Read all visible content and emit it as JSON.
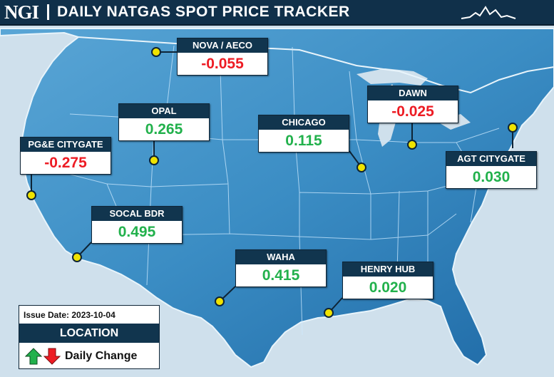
{
  "header": {
    "logo": "NGI",
    "title": "DAILY NATGAS SPOT PRICE TRACKER"
  },
  "colors": {
    "up": "#22b14c",
    "down": "#ed1c24",
    "label_bg": "#11354e",
    "map_land": "#3f92c8",
    "water": "#cfe0ec",
    "marker": "#f0e300"
  },
  "hubs": [
    {
      "id": "nova-aeco",
      "name": "NOVA / AECO",
      "value": "-0.055",
      "direction": "down"
    },
    {
      "id": "opal",
      "name": "OPAL",
      "value": "0.265",
      "direction": "up"
    },
    {
      "id": "pge-citygate",
      "name": "PG&E CITYGATE",
      "value": "-0.275",
      "direction": "down"
    },
    {
      "id": "socal-bdr",
      "name": "SOCAL BDR",
      "value": "0.495",
      "direction": "up"
    },
    {
      "id": "chicago",
      "name": "CHICAGO",
      "value": "0.115",
      "direction": "up"
    },
    {
      "id": "dawn",
      "name": "DAWN",
      "value": "-0.025",
      "direction": "down"
    },
    {
      "id": "agt-citygate",
      "name": "AGT CITYGATE",
      "value": "0.030",
      "direction": "up"
    },
    {
      "id": "waha",
      "name": "WAHA",
      "value": "0.415",
      "direction": "up"
    },
    {
      "id": "henry-hub",
      "name": "HENRY HUB",
      "value": "0.020",
      "direction": "up"
    }
  ],
  "legend": {
    "issue_date": "Issue Date: 2023-10-04",
    "location_label": "LOCATION",
    "change_label": "Daily Change"
  }
}
